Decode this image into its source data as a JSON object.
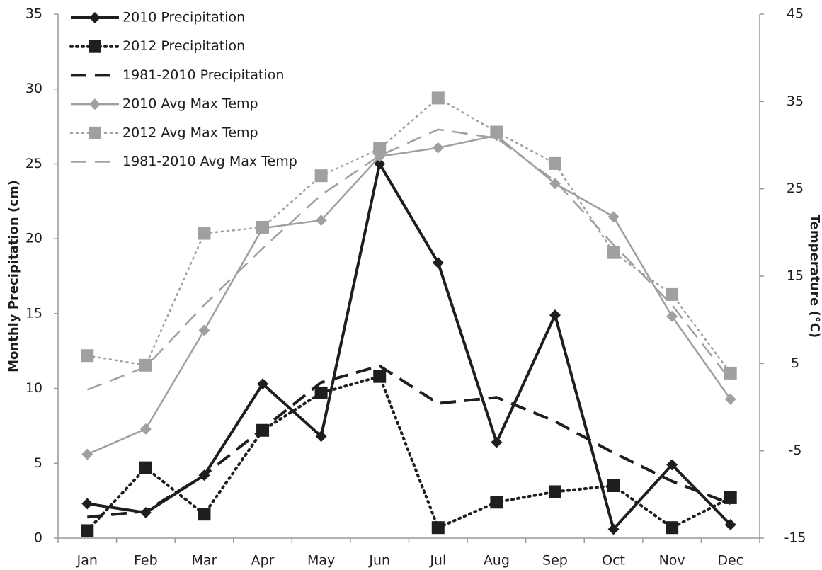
{
  "chart_data": {
    "type": "line",
    "y_label": "Monthly Precipitation (cm)",
    "y2_label": "Temperature (°C)",
    "categories": [
      "Jan",
      "Feb",
      "Mar",
      "Apr",
      "May",
      "Jun",
      "Jul",
      "Aug",
      "Sep",
      "Oct",
      "Nov",
      "Dec"
    ],
    "ylim": [
      0,
      35
    ],
    "yticks": [
      0,
      5,
      10,
      15,
      20,
      25,
      30,
      35
    ],
    "y2lim": [
      -15,
      45
    ],
    "y2ticks": [
      -15,
      -5,
      5,
      15,
      25,
      35,
      45
    ],
    "grid": false,
    "legend": "upper-left",
    "series": [
      {
        "name": "2010 Precipitation",
        "color": "#1e1e1e",
        "axis": "y",
        "marker": "diamond",
        "line_style": "solid",
        "values": [
          2.3,
          1.7,
          4.2,
          10.3,
          6.8,
          25.0,
          18.4,
          6.4,
          14.9,
          0.6,
          4.9,
          0.9
        ]
      },
      {
        "name": "2012 Precipitation",
        "color": "#1e1e1e",
        "axis": "y",
        "marker": "square",
        "line_style": "dotted",
        "values": [
          0.5,
          4.7,
          1.6,
          7.2,
          9.7,
          10.8,
          0.7,
          2.4,
          3.1,
          3.5,
          0.7,
          2.7
        ]
      },
      {
        "name": "1981-2010 Precipitation",
        "color": "#1e1e1e",
        "axis": "y",
        "marker": "none",
        "line_style": "dashed",
        "values": [
          1.4,
          1.8,
          4.2,
          7.3,
          10.4,
          11.5,
          9.0,
          9.4,
          7.8,
          5.7,
          3.8,
          2.3
        ]
      },
      {
        "name": "2010 Avg Max Temp",
        "color": "#a0a0a0",
        "axis": "y2",
        "marker": "diamond",
        "line_style": "solid",
        "values": [
          -5.4,
          -2.5,
          8.8,
          20.5,
          21.4,
          28.7,
          29.7,
          31.1,
          25.6,
          21.8,
          10.4,
          0.9
        ]
      },
      {
        "name": "2012 Avg Max Temp",
        "color": "#a0a0a0",
        "axis": "y2",
        "marker": "square",
        "line_style": "dotted",
        "values": [
          5.9,
          4.8,
          19.9,
          20.6,
          26.5,
          29.6,
          35.4,
          31.5,
          27.9,
          17.7,
          12.9,
          3.9
        ]
      },
      {
        "name": "1981-2010 Avg Max Temp",
        "color": "#a0a0a0",
        "axis": "y2",
        "marker": "none",
        "line_style": "dashed",
        "values": [
          2.0,
          4.6,
          11.7,
          18.2,
          24.3,
          28.8,
          31.8,
          30.8,
          25.9,
          18.6,
          11.7,
          3.1
        ]
      }
    ]
  }
}
